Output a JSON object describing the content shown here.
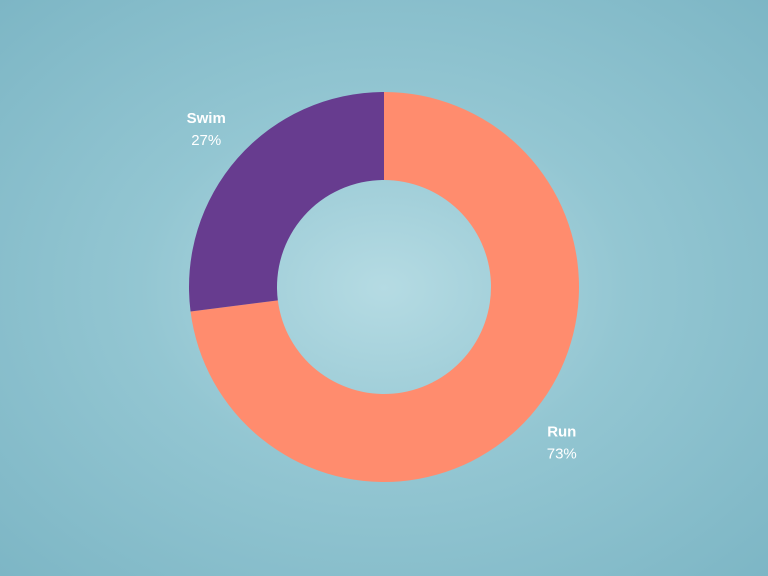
{
  "chart_data": {
    "type": "pie",
    "categories": [
      "Run",
      "Swim"
    ],
    "values": [
      73,
      27
    ],
    "value_labels": [
      "73%",
      "27%"
    ],
    "colors": [
      "#ff8c6e",
      "#673c8f"
    ],
    "donut": true
  }
}
